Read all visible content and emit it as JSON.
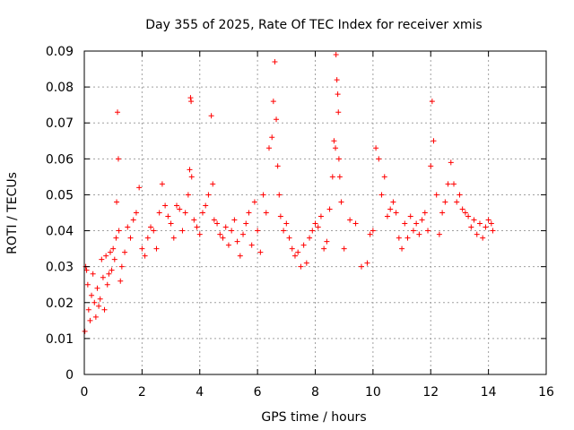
{
  "chart_data": {
    "type": "scatter",
    "title": "Day 355 of 2025, Rate Of TEC Index for receiver xmis",
    "xlabel": "GPS time / hours",
    "ylabel": "ROTI / TECUs",
    "xlim": [
      0,
      16
    ],
    "ylim": [
      0,
      0.09
    ],
    "x_ticks": [
      0,
      2,
      4,
      6,
      8,
      10,
      12,
      14,
      16
    ],
    "x_tick_labels": [
      "0",
      "2",
      "4",
      "6",
      "8",
      "10",
      "12",
      "14",
      "16"
    ],
    "y_ticks": [
      0,
      0.01,
      0.02,
      0.03,
      0.04,
      0.05,
      0.06,
      0.07,
      0.08,
      0.09
    ],
    "y_tick_labels": [
      "0",
      "0.01",
      "0.02",
      "0.03",
      "0.04",
      "0.05",
      "0.06",
      "0.07",
      "0.08",
      "0.09"
    ],
    "grid": true,
    "marker": "+",
    "color": "#ff0000",
    "series": [
      {
        "name": "ROTI",
        "x": [
          0.02,
          0.05,
          0.08,
          0.12,
          0.15,
          0.2,
          0.25,
          0.3,
          0.35,
          0.4,
          0.45,
          0.5,
          0.55,
          0.6,
          0.65,
          0.7,
          0.75,
          0.8,
          0.85,
          0.9,
          0.95,
          1.0,
          1.05,
          1.1,
          1.12,
          1.15,
          1.18,
          1.2,
          1.25,
          1.3,
          1.4,
          1.5,
          1.6,
          1.7,
          1.8,
          1.9,
          2.0,
          2.1,
          2.2,
          2.3,
          2.4,
          2.5,
          2.6,
          2.7,
          2.8,
          2.9,
          3.0,
          3.1,
          3.2,
          3.3,
          3.4,
          3.5,
          3.6,
          3.65,
          3.68,
          3.7,
          3.72,
          3.8,
          3.9,
          4.0,
          4.1,
          4.2,
          4.3,
          4.4,
          4.45,
          4.5,
          4.6,
          4.7,
          4.8,
          4.9,
          5.0,
          5.1,
          5.2,
          5.3,
          5.4,
          5.5,
          5.6,
          5.7,
          5.8,
          5.9,
          6.0,
          6.1,
          6.2,
          6.3,
          6.4,
          6.5,
          6.55,
          6.6,
          6.65,
          6.7,
          6.75,
          6.8,
          6.9,
          7.0,
          7.1,
          7.2,
          7.3,
          7.4,
          7.5,
          7.6,
          7.7,
          7.8,
          7.9,
          8.0,
          8.1,
          8.2,
          8.3,
          8.4,
          8.5,
          8.6,
          8.65,
          8.7,
          8.72,
          8.75,
          8.78,
          8.8,
          8.82,
          8.85,
          8.9,
          9.0,
          9.2,
          9.4,
          9.6,
          9.8,
          9.9,
          10.0,
          10.1,
          10.2,
          10.3,
          10.4,
          10.5,
          10.6,
          10.7,
          10.8,
          10.9,
          11.0,
          11.1,
          11.2,
          11.3,
          11.4,
          11.5,
          11.6,
          11.7,
          11.8,
          11.9,
          12.0,
          12.05,
          12.1,
          12.2,
          12.3,
          12.4,
          12.5,
          12.6,
          12.7,
          12.8,
          12.9,
          13.0,
          13.1,
          13.2,
          13.3,
          13.4,
          13.5,
          13.6,
          13.7,
          13.8,
          13.9,
          14.0,
          14.1,
          14.15
        ],
        "y": [
          0.012,
          0.03,
          0.029,
          0.025,
          0.018,
          0.015,
          0.022,
          0.028,
          0.02,
          0.016,
          0.024,
          0.019,
          0.021,
          0.032,
          0.027,
          0.018,
          0.033,
          0.025,
          0.028,
          0.034,
          0.029,
          0.035,
          0.032,
          0.038,
          0.048,
          0.073,
          0.06,
          0.04,
          0.026,
          0.03,
          0.034,
          0.041,
          0.038,
          0.043,
          0.045,
          0.052,
          0.035,
          0.033,
          0.038,
          0.041,
          0.04,
          0.035,
          0.045,
          0.053,
          0.047,
          0.044,
          0.042,
          0.038,
          0.047,
          0.046,
          0.04,
          0.045,
          0.05,
          0.057,
          0.077,
          0.076,
          0.055,
          0.043,
          0.041,
          0.039,
          0.045,
          0.047,
          0.05,
          0.072,
          0.053,
          0.043,
          0.042,
          0.039,
          0.038,
          0.041,
          0.036,
          0.04,
          0.043,
          0.037,
          0.033,
          0.039,
          0.042,
          0.045,
          0.036,
          0.048,
          0.04,
          0.034,
          0.05,
          0.045,
          0.063,
          0.066,
          0.076,
          0.087,
          0.071,
          0.058,
          0.05,
          0.044,
          0.04,
          0.042,
          0.038,
          0.035,
          0.033,
          0.034,
          0.03,
          0.036,
          0.031,
          0.038,
          0.04,
          0.042,
          0.041,
          0.044,
          0.035,
          0.037,
          0.046,
          0.055,
          0.065,
          0.063,
          0.089,
          0.082,
          0.078,
          0.073,
          0.06,
          0.055,
          0.048,
          0.035,
          0.043,
          0.042,
          0.03,
          0.031,
          0.039,
          0.04,
          0.063,
          0.06,
          0.05,
          0.055,
          0.044,
          0.046,
          0.048,
          0.045,
          0.038,
          0.035,
          0.042,
          0.038,
          0.044,
          0.04,
          0.042,
          0.039,
          0.043,
          0.045,
          0.04,
          0.058,
          0.076,
          0.065,
          0.05,
          0.039,
          0.045,
          0.048,
          0.053,
          0.059,
          0.053,
          0.048,
          0.05,
          0.046,
          0.045,
          0.044,
          0.041,
          0.043,
          0.039,
          0.042,
          0.038,
          0.041,
          0.043,
          0.042,
          0.04
        ]
      }
    ]
  }
}
